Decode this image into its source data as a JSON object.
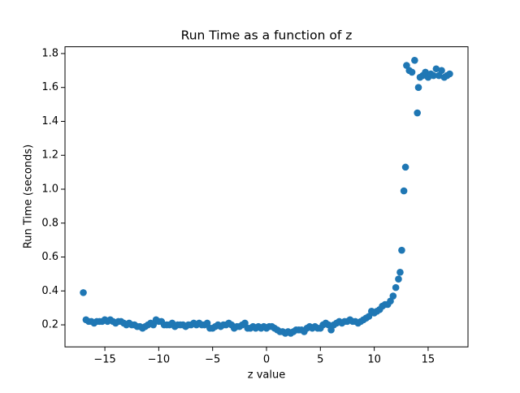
{
  "chart_data": {
    "type": "scatter",
    "title": "Run Time as a function of z",
    "x_label": "z value",
    "y_label": "Run Time (seconds)",
    "color": "#1f77b4",
    "grid": false,
    "xlim": [
      -18.7,
      18.7
    ],
    "ylim": [
      0.07,
      1.84
    ],
    "xticks": [
      {
        "value": -15,
        "label": "−15"
      },
      {
        "value": -10,
        "label": "−10"
      },
      {
        "value": -5,
        "label": "−5"
      },
      0,
      5,
      10,
      15
    ],
    "yticks": [
      0.2,
      0.4,
      0.6,
      0.8,
      {
        "value": 1,
        "label": "1.0"
      },
      1.2,
      1.4,
      1.6,
      1.8
    ],
    "x": [
      -17,
      -16.75,
      -16.5,
      -16.25,
      -16,
      -15.75,
      -15.5,
      -15.25,
      -15,
      -14.75,
      -14.5,
      -14.25,
      -14,
      -13.75,
      -13.5,
      -13.25,
      -13,
      -12.75,
      -12.5,
      -12.25,
      -12,
      -11.75,
      -11.5,
      -11.25,
      -11,
      -10.75,
      -10.5,
      -10.25,
      -10,
      -9.75,
      -9.5,
      -9.25,
      -9,
      -8.75,
      -8.5,
      -8.25,
      -8,
      -7.75,
      -7.5,
      -7.25,
      -7,
      -6.75,
      -6.5,
      -6.25,
      -6,
      -5.75,
      -5.5,
      -5.25,
      -5,
      -4.75,
      -4.5,
      -4.25,
      -4,
      -3.75,
      -3.5,
      -3.25,
      -3,
      -2.75,
      -2.5,
      -2.25,
      -2,
      -1.75,
      -1.5,
      -1.25,
      -1,
      -0.75,
      -0.5,
      -0.25,
      0,
      0.25,
      0.5,
      0.75,
      1,
      1.25,
      1.5,
      1.75,
      2,
      2.25,
      2.5,
      2.75,
      3,
      3.25,
      3.5,
      3.75,
      4,
      4.25,
      4.5,
      4.75,
      5,
      5.25,
      5.5,
      5.75,
      6,
      6.25,
      6.5,
      6.75,
      7,
      7.25,
      7.5,
      7.75,
      8,
      8.25,
      8.5,
      8.75,
      9,
      9.25,
      9.5,
      9.75,
      10,
      10.25,
      10.5,
      10.75,
      11,
      11.25,
      11.5,
      11.75,
      12,
      12.25,
      12.4,
      12.55,
      12.75,
      12.9,
      13,
      13.25,
      13.5,
      13.75,
      14,
      14.1,
      14.25,
      14.5,
      14.75,
      15,
      15.25,
      15.5,
      15.75,
      16,
      16.25,
      16.5,
      16.75,
      17
    ],
    "values": [
      0.39,
      0.23,
      0.22,
      0.22,
      0.21,
      0.22,
      0.22,
      0.22,
      0.23,
      0.22,
      0.23,
      0.22,
      0.21,
      0.22,
      0.22,
      0.21,
      0.2,
      0.21,
      0.2,
      0.2,
      0.19,
      0.19,
      0.18,
      0.19,
      0.2,
      0.21,
      0.2,
      0.23,
      0.22,
      0.22,
      0.2,
      0.2,
      0.2,
      0.21,
      0.19,
      0.2,
      0.2,
      0.2,
      0.19,
      0.2,
      0.2,
      0.21,
      0.2,
      0.21,
      0.2,
      0.2,
      0.21,
      0.18,
      0.18,
      0.19,
      0.2,
      0.19,
      0.2,
      0.2,
      0.21,
      0.2,
      0.18,
      0.19,
      0.19,
      0.2,
      0.21,
      0.18,
      0.18,
      0.19,
      0.18,
      0.19,
      0.18,
      0.19,
      0.18,
      0.19,
      0.19,
      0.18,
      0.17,
      0.16,
      0.16,
      0.15,
      0.16,
      0.15,
      0.16,
      0.17,
      0.17,
      0.17,
      0.16,
      0.18,
      0.19,
      0.18,
      0.19,
      0.18,
      0.18,
      0.2,
      0.21,
      0.2,
      0.17,
      0.2,
      0.21,
      0.22,
      0.21,
      0.22,
      0.22,
      0.23,
      0.22,
      0.22,
      0.21,
      0.22,
      0.23,
      0.24,
      0.25,
      0.28,
      0.27,
      0.28,
      0.29,
      0.31,
      0.32,
      0.32,
      0.34,
      0.37,
      0.42,
      0.47,
      0.51,
      0.64,
      0.99,
      1.13,
      1.73,
      1.7,
      1.69,
      1.76,
      1.45,
      1.6,
      1.66,
      1.67,
      1.69,
      1.66,
      1.68,
      1.67,
      1.71,
      1.67,
      1.7,
      1.66,
      1.67,
      1.68
    ]
  }
}
